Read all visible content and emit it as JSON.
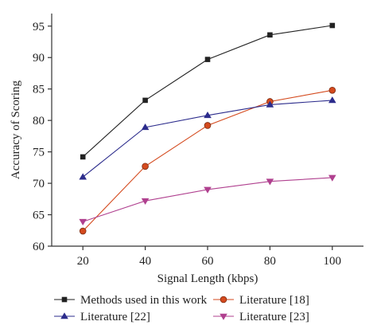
{
  "chart_data": {
    "type": "line",
    "xlabel": "Signal Length (kbps)",
    "ylabel": "Accuracy of Scoring",
    "x": [
      20,
      40,
      60,
      80,
      100
    ],
    "xlim": [
      10,
      110
    ],
    "ylim": [
      60,
      97
    ],
    "xticks": [
      20,
      40,
      60,
      80,
      100
    ],
    "yticks": [
      60,
      65,
      70,
      75,
      80,
      85,
      90,
      95
    ],
    "grid": false,
    "legend_position": "bottom",
    "series": [
      {
        "name": "Methods used in this work",
        "color": "#222222",
        "marker": "square",
        "values": [
          74.2,
          83.2,
          89.7,
          93.6,
          95.1
        ]
      },
      {
        "name": "Literature [18]",
        "color": "#d44a1e",
        "marker": "circle",
        "values": [
          62.4,
          72.7,
          79.2,
          83.0,
          84.8
        ]
      },
      {
        "name": "Literature [22]",
        "color": "#2c2c8c",
        "marker": "triangle-up",
        "values": [
          71.0,
          78.9,
          80.8,
          82.5,
          83.2
        ]
      },
      {
        "name": "Literature [23]",
        "color": "#b0408f",
        "marker": "triangle-down",
        "values": [
          63.9,
          67.2,
          69.0,
          70.3,
          70.9
        ]
      }
    ]
  }
}
